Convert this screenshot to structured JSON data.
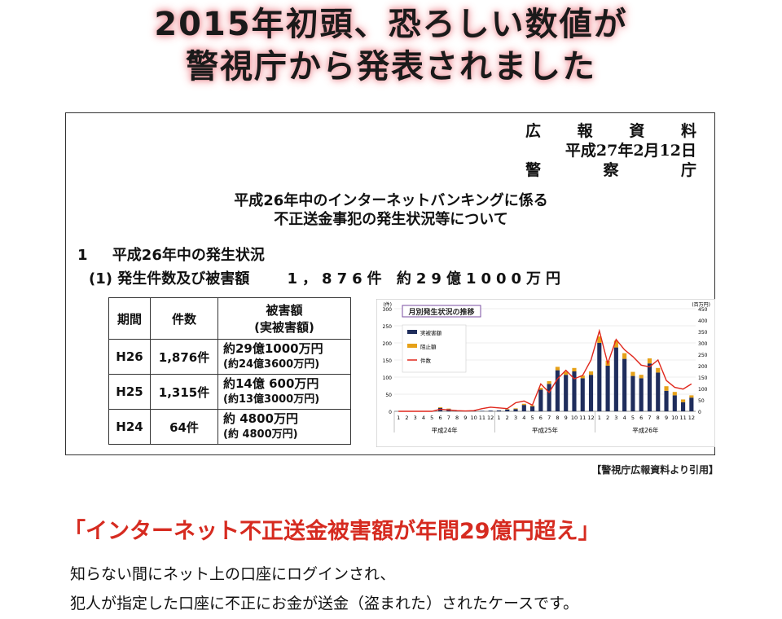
{
  "headline": {
    "line1": "2015年初頭、恐ろしい数値が",
    "line2": "警視庁から発表されました"
  },
  "press": {
    "row1": [
      "広",
      "報",
      "資",
      "料"
    ],
    "date": "平成27年2月12日",
    "row3": [
      "警",
      "察",
      "庁"
    ]
  },
  "doc_title": {
    "line1": "平成26年中のインターネットバンキングに係る",
    "line2": "不正送金事犯の発生状況等について"
  },
  "section1": {
    "num": "1",
    "text": "平成26年中の発生状況"
  },
  "sub1": {
    "label": "(1) 発生件数及び被害額",
    "value": "1，876件 約29億1000万円"
  },
  "table": {
    "headers": [
      "期間",
      "件数",
      "被害額",
      "(実被害額)"
    ],
    "rows": [
      {
        "period": "H26",
        "count": "1,876件",
        "amount": "約29億1000万円",
        "actual": "(約24億3600万円)"
      },
      {
        "period": "H25",
        "count": "1,315件",
        "amount": "約14億 600万円",
        "actual": "(約13億3000万円)"
      },
      {
        "period": "H24",
        "count": "64件",
        "amount": "約 4800万円",
        "actual": "(約 4800万円)"
      }
    ]
  },
  "caption": "【警視庁広報資料より引用】",
  "red_headline": "「インターネット不正送金被害額が年間29億円超え」",
  "body": {
    "line1": "知らない間にネット上の口座にログインされ、",
    "line2": "犯人が指定した口座に不正にお金が送金（盗まれた）されたケースです。"
  },
  "colors": {
    "accent_red": "#d62b20",
    "bar_navy": "#1f2d5c",
    "bar_gold": "#e6a118",
    "line_red": "#e0271c"
  },
  "chart_data": {
    "type": "bar",
    "title": "月別発生状況の推移",
    "left_unit": "(件)",
    "right_unit": "(百万円)",
    "left_ticks": [
      0,
      50,
      100,
      150,
      200,
      250,
      300
    ],
    "right_ticks": [
      0,
      50,
      100,
      150,
      200,
      250,
      300,
      350,
      400,
      450
    ],
    "ylim_left": [
      0,
      300
    ],
    "ylim_right": [
      0,
      450
    ],
    "categories": [
      "1",
      "2",
      "3",
      "4",
      "5",
      "6",
      "7",
      "8",
      "9",
      "10",
      "11",
      "12",
      "1",
      "2",
      "3",
      "4",
      "5",
      "6",
      "7",
      "8",
      "9",
      "10",
      "11",
      "12",
      "1",
      "2",
      "3",
      "4",
      "5",
      "6",
      "7",
      "8",
      "9",
      "10",
      "11",
      "12"
    ],
    "years": [
      "平成24年",
      "平成25年",
      "平成26年"
    ],
    "legend": [
      "実被害額",
      "阻止額",
      "件数"
    ],
    "series": [
      {
        "name": "実被害額",
        "axis": "right",
        "values": [
          0,
          0,
          0,
          0,
          0,
          15,
          10,
          2,
          3,
          2,
          2,
          3,
          4,
          8,
          10,
          28,
          22,
          95,
          120,
          180,
          160,
          175,
          145,
          160,
          300,
          200,
          280,
          230,
          155,
          145,
          210,
          170,
          90,
          70,
          40,
          60
        ]
      },
      {
        "name": "阻止額",
        "axis": "right",
        "values": [
          0,
          0,
          0,
          0,
          0,
          3,
          2,
          0,
          0,
          0,
          0,
          0,
          0,
          2,
          3,
          5,
          4,
          8,
          12,
          15,
          14,
          15,
          12,
          15,
          28,
          22,
          30,
          25,
          18,
          15,
          22,
          20,
          20,
          15,
          12,
          10
        ]
      },
      {
        "name": "件数",
        "axis": "left",
        "values": [
          0,
          0,
          0,
          0,
          0,
          6,
          4,
          2,
          1,
          2,
          8,
          12,
          10,
          8,
          25,
          30,
          18,
          80,
          55,
          95,
          120,
          95,
          105,
          150,
          235,
          140,
          210,
          180,
          160,
          135,
          130,
          150,
          90,
          70,
          65,
          80
        ]
      }
    ]
  }
}
